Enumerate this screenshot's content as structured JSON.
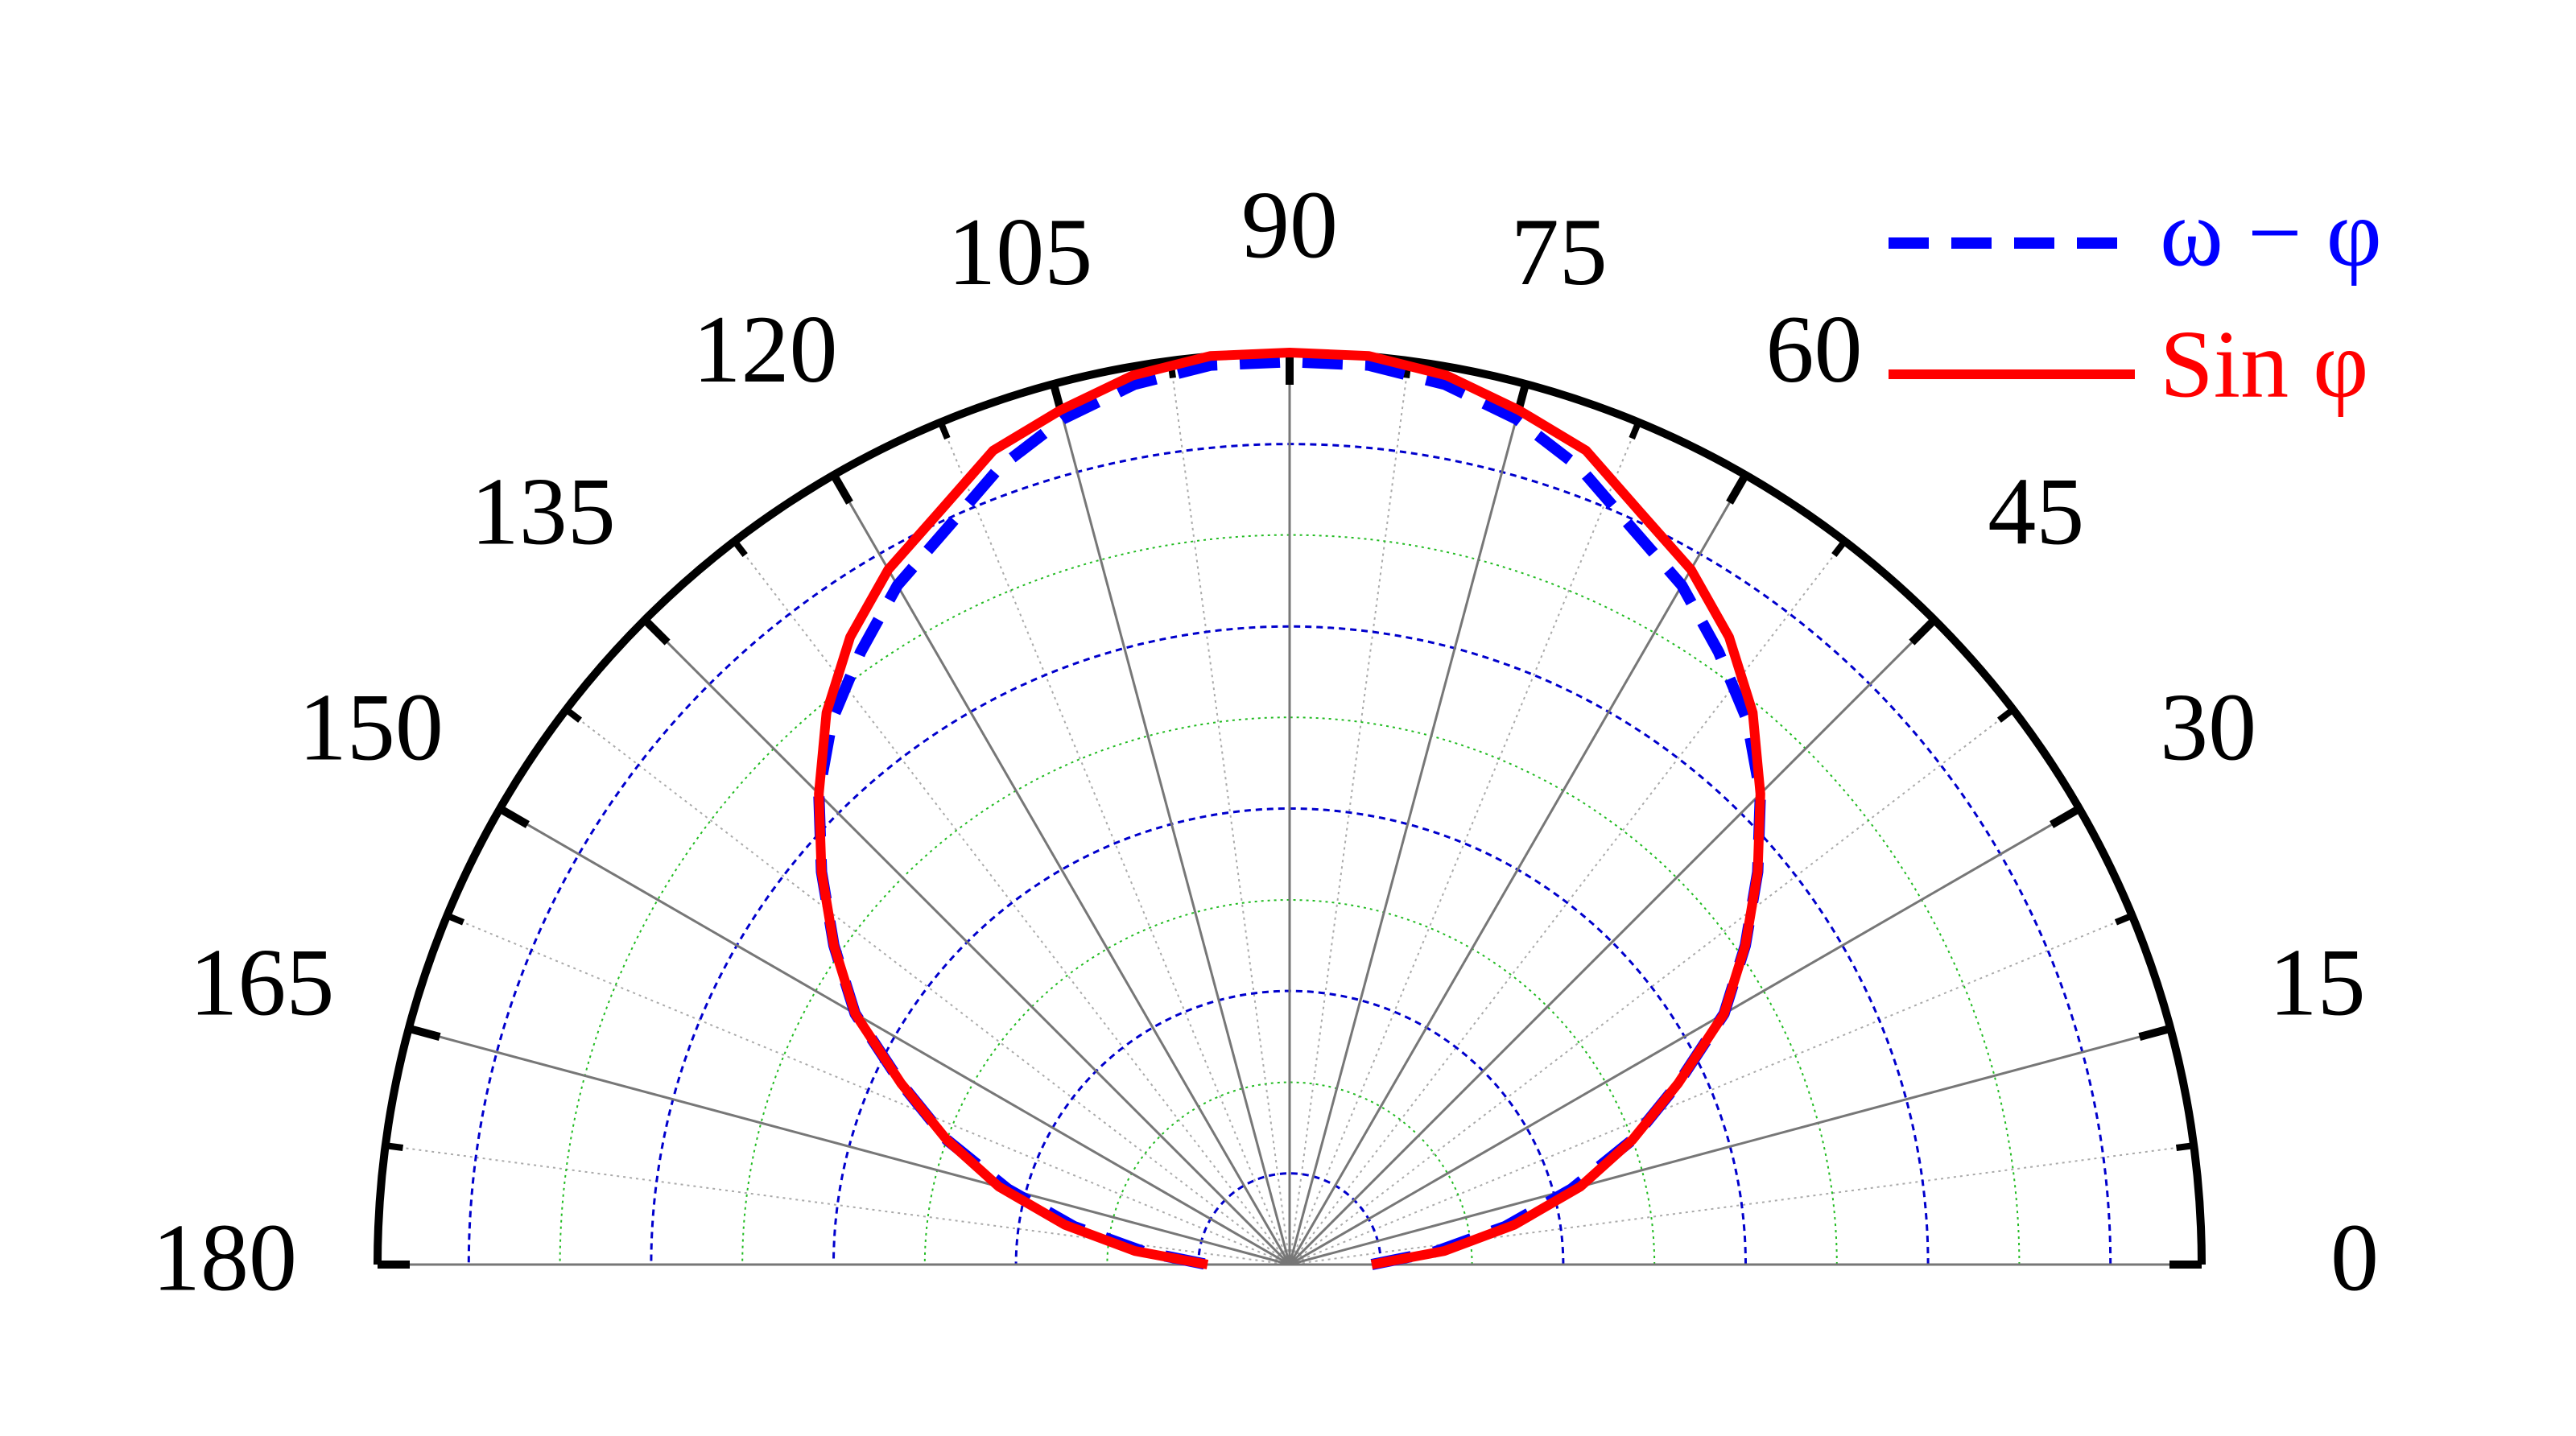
{
  "chart_data": {
    "type": "polar",
    "theta": [
      0,
      5,
      10,
      15,
      20,
      25,
      30,
      35,
      40,
      45,
      50,
      55,
      60,
      65,
      70,
      75,
      80,
      85,
      90,
      95,
      100,
      105,
      110,
      115,
      120,
      125,
      130,
      135,
      140,
      145,
      150,
      155,
      160,
      165,
      170,
      175,
      180
    ],
    "series": [
      {
        "name": "ω − φ",
        "color": "#0000ff",
        "dash": true,
        "values": [
          0.09,
          0.16,
          0.24,
          0.32,
          0.4,
          0.47,
          0.55,
          0.61,
          0.67,
          0.73,
          0.78,
          0.82,
          0.86,
          0.89,
          0.93,
          0.96,
          0.98,
          0.99,
          0.99,
          0.99,
          0.98,
          0.96,
          0.93,
          0.89,
          0.86,
          0.82,
          0.78,
          0.73,
          0.67,
          0.61,
          0.55,
          0.47,
          0.4,
          0.32,
          0.24,
          0.16,
          0.09
        ]
      },
      {
        "name": "Sin φ",
        "color": "#ff0000",
        "dash": false,
        "values": [
          0.09,
          0.17,
          0.25,
          0.33,
          0.4,
          0.47,
          0.55,
          0.61,
          0.67,
          0.73,
          0.79,
          0.84,
          0.88,
          0.91,
          0.95,
          0.97,
          0.99,
          1.0,
          1.0,
          1.0,
          0.99,
          0.97,
          0.95,
          0.91,
          0.88,
          0.84,
          0.79,
          0.73,
          0.67,
          0.61,
          0.55,
          0.47,
          0.4,
          0.33,
          0.25,
          0.17,
          0.09
        ]
      }
    ],
    "thetalim": [
      0,
      180
    ],
    "thetaticks": [
      0,
      15,
      30,
      45,
      60,
      75,
      90,
      105,
      120,
      135,
      150,
      165,
      180
    ],
    "theta_minor_ticks": [
      7.5,
      22.5,
      37.5,
      52.5,
      67.5,
      82.5,
      97.5,
      112.5,
      127.5,
      142.5,
      157.5,
      172.5
    ],
    "rlim": [
      0,
      1
    ],
    "rticks": [
      0.1,
      0.2,
      0.3,
      0.4,
      0.5,
      0.6,
      0.7,
      0.8,
      0.9
    ],
    "rgrid_colors": [
      "#0000cc",
      "#22bb22"
    ],
    "legend": "top-right"
  }
}
